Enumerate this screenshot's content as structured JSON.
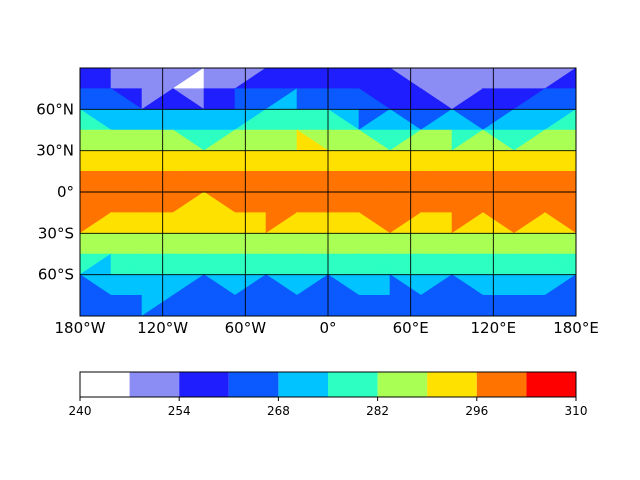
{
  "chart_data": {
    "type": "heatmap",
    "title": "",
    "xlabel": "",
    "ylabel": "",
    "xlim": [
      -180,
      180
    ],
    "ylim": [
      -90,
      90
    ],
    "grid": true,
    "x_ticks": [
      {
        "value": -180,
        "label": "180°W"
      },
      {
        "value": -120,
        "label": "120°W"
      },
      {
        "value": -60,
        "label": "60°W"
      },
      {
        "value": 0,
        "label": "0°"
      },
      {
        "value": 60,
        "label": "60°E"
      },
      {
        "value": 120,
        "label": "120°E"
      },
      {
        "value": 180,
        "label": "180°E"
      }
    ],
    "y_ticks": [
      {
        "value": 60,
        "label": "60°N"
      },
      {
        "value": 30,
        "label": "30°N"
      },
      {
        "value": 0,
        "label": "0°"
      },
      {
        "value": -30,
        "label": "30°S"
      },
      {
        "value": -60,
        "label": "60°S"
      }
    ],
    "colorbar": {
      "placement": "bottom",
      "levels": [
        240,
        247,
        254,
        261,
        268,
        275,
        282,
        289,
        296,
        303,
        310
      ],
      "colors": [
        "#ffffff",
        "#8c8cf5",
        "#1e1eff",
        "#0a5aff",
        "#00c3ff",
        "#2dffc3",
        "#aaff55",
        "#ffe100",
        "#ff7300",
        "#ff0000"
      ],
      "tick_values": [
        240,
        254,
        268,
        282,
        296,
        310
      ],
      "tick_labels": [
        "240",
        "254",
        "268",
        "282",
        "296",
        "310"
      ]
    },
    "lons": [
      -180,
      -157.5,
      -135,
      -112.5,
      -90,
      -67.5,
      -45,
      -22.5,
      0,
      22.5,
      45,
      67.5,
      90,
      112.5,
      135,
      157.5,
      180
    ],
    "lats": [
      90,
      75,
      60,
      45,
      30,
      15,
      0,
      -15,
      -30,
      -45,
      -60,
      -75,
      -90
    ],
    "values": [
      [
        253,
        252,
        251,
        250,
        248,
        250,
        252,
        253,
        254,
        255,
        256,
        253,
        250,
        247,
        250,
        252,
        253
      ],
      [
        255,
        258,
        250,
        246,
        244,
        256,
        262,
        262,
        259,
        262,
        258,
        250,
        247,
        247,
        252,
        255,
        255
      ],
      [
        274,
        266,
        263,
        265,
        264,
        261,
        270,
        273,
        268,
        265,
        258,
        262,
        259,
        258,
        263,
        266,
        274
      ],
      [
        280,
        278,
        281,
        277,
        275,
        280,
        284,
        286,
        280,
        279,
        275,
        277,
        279,
        275,
        276,
        278,
        280
      ],
      [
        290,
        289,
        290,
        288,
        287,
        289,
        288,
        290,
        291,
        288,
        290,
        289,
        290,
        288,
        289,
        290,
        290
      ],
      [
        297,
        298,
        297,
        297,
        298,
        297,
        298,
        296,
        297,
        298,
        297,
        298,
        297,
        298,
        297,
        297,
        297
      ],
      [
        300,
        300,
        300,
        300,
        302,
        299,
        300,
        300,
        301,
        304,
        300,
        300,
        300,
        299,
        300,
        300,
        300
      ],
      [
        299,
        298,
        298,
        294,
        290,
        295,
        298,
        299,
        298,
        299,
        300,
        299,
        299,
        300,
        303,
        301,
        299
      ],
      [
        291,
        292,
        288,
        289,
        290,
        288,
        291,
        293,
        290,
        290,
        290,
        290,
        289,
        291,
        291,
        291,
        291
      ],
      [
        284,
        280,
        282,
        282,
        280,
        284,
        282,
        280,
        282,
        283,
        281,
        282,
        283,
        279,
        281,
        282,
        284
      ],
      [
        272,
        272,
        275,
        274,
        272,
        272,
        273,
        276,
        273,
        272,
        274,
        274,
        273,
        275,
        276,
        272,
        272
      ],
      [
        264,
        265,
        270,
        269,
        262,
        264,
        265,
        264,
        265,
        265,
        265,
        260,
        265,
        263,
        265,
        265,
        264
      ],
      [
        265,
        265,
        265,
        265,
        265,
        265,
        265,
        265,
        265,
        265,
        265,
        265,
        265,
        265,
        265,
        265,
        265
      ]
    ]
  }
}
